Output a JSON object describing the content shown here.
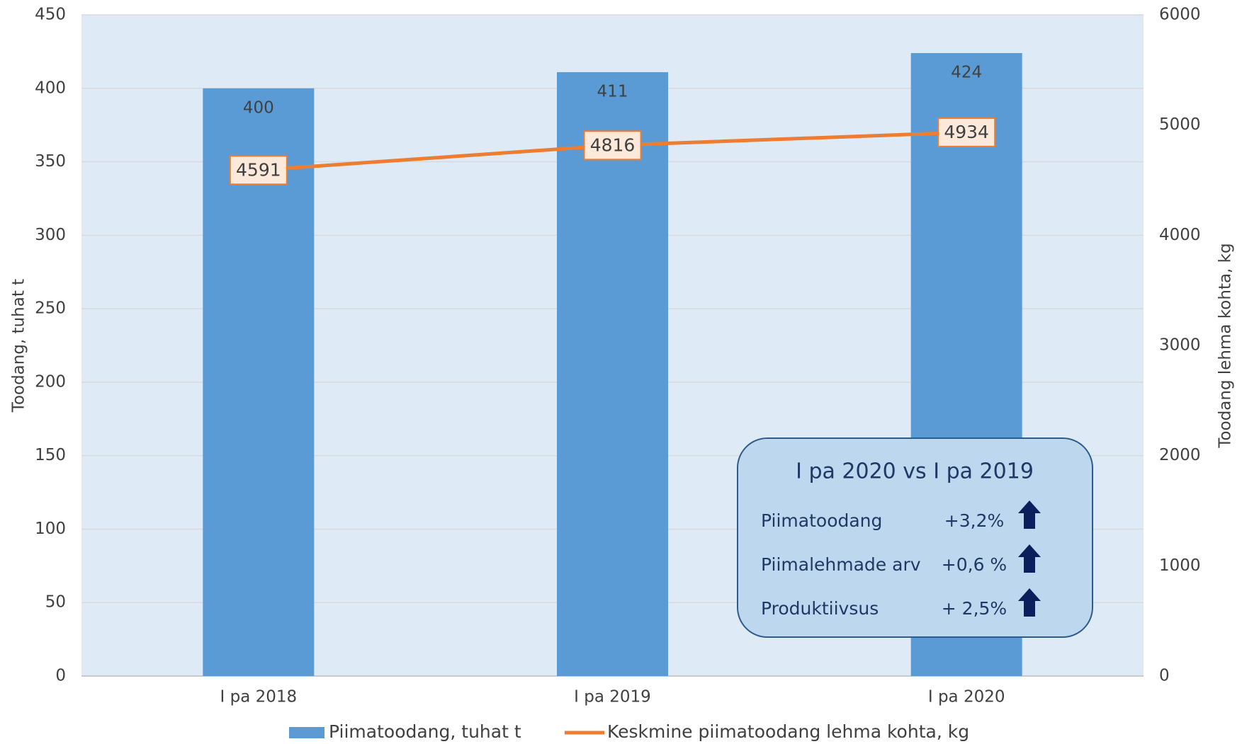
{
  "chart_data": {
    "type": "bar",
    "categories": [
      "I pa 2018",
      "I pa 2019",
      "I pa 2020"
    ],
    "series": [
      {
        "name": "Piimatoodang, tuhat t",
        "type": "bar",
        "color": "#5b9bd5",
        "values": [
          400,
          411,
          424
        ]
      },
      {
        "name": "Keskmine piimatoodang lehma kohta, kg",
        "type": "line",
        "axis": "y2",
        "color": "#ed7d31",
        "values": [
          4591,
          4816,
          4934
        ]
      }
    ],
    "ylabel": "Toodang, tuhat t",
    "y2label": "Toodang lehma kohta, kg",
    "ylim": [
      0,
      450
    ],
    "yticks": [
      0,
      50,
      100,
      150,
      200,
      250,
      300,
      350,
      400,
      450
    ],
    "y2lim": [
      0,
      6000
    ],
    "y2ticks": [
      0,
      1000,
      2000,
      3000,
      4000,
      5000,
      6000
    ],
    "grid": true,
    "legend": "bottom",
    "comparison": {
      "title": "I pa 2020 vs I pa 2019",
      "items": [
        {
          "label": "Piimatoodang",
          "change": "+3,2%"
        },
        {
          "label": "Piimalehmade arv",
          "change": "+0,6 %"
        },
        {
          "label": "Produktiivsus",
          "change": "+ 2,5%"
        }
      ]
    }
  }
}
